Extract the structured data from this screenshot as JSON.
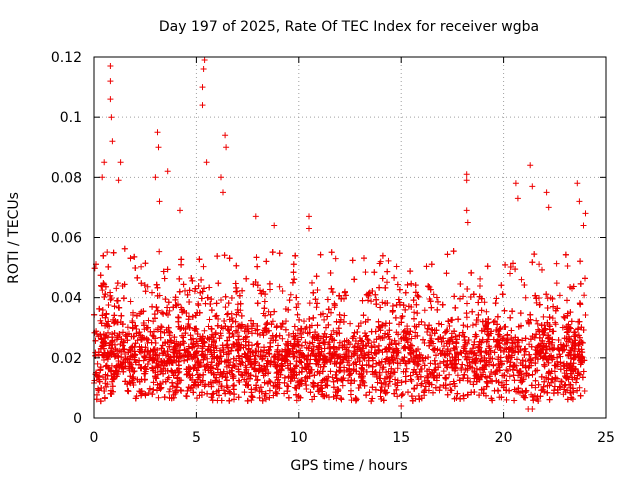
{
  "chart_data": {
    "type": "scatter",
    "title": "Day 197 of 2025, Rate Of TEC Index for receiver wgba",
    "xlabel": "GPS time / hours",
    "ylabel": "ROTI / TECUs",
    "xlim": [
      0,
      25
    ],
    "ylim": [
      0,
      0.12
    ],
    "xticks": [
      0,
      5,
      10,
      15,
      20,
      25
    ],
    "xtick_labels": [
      "0",
      "5",
      "10",
      "15",
      "20",
      "25"
    ],
    "yticks": [
      0,
      0.02,
      0.04,
      0.06,
      0.08,
      0.1,
      0.12
    ],
    "ytick_labels": [
      "0",
      "0.02",
      "0.04",
      "0.06",
      "0.08",
      "0.1",
      "0.12"
    ],
    "grid": true,
    "marker": "+",
    "color": "#ee0000",
    "x_range_hours": [
      0,
      24
    ],
    "dense_band": [
      0.008,
      0.03
    ],
    "typical_upper_envelope": 0.045,
    "notable_points": [
      {
        "x": 0.8,
        "y": 0.117
      },
      {
        "x": 0.8,
        "y": 0.112
      },
      {
        "x": 0.8,
        "y": 0.106
      },
      {
        "x": 0.85,
        "y": 0.1
      },
      {
        "x": 0.9,
        "y": 0.092
      },
      {
        "x": 0.5,
        "y": 0.085
      },
      {
        "x": 1.3,
        "y": 0.085
      },
      {
        "x": 1.2,
        "y": 0.079
      },
      {
        "x": 0.4,
        "y": 0.08
      },
      {
        "x": 3.1,
        "y": 0.095
      },
      {
        "x": 3.15,
        "y": 0.09
      },
      {
        "x": 3.6,
        "y": 0.082
      },
      {
        "x": 3.0,
        "y": 0.08
      },
      {
        "x": 4.2,
        "y": 0.069
      },
      {
        "x": 3.2,
        "y": 0.072
      },
      {
        "x": 5.4,
        "y": 0.119
      },
      {
        "x": 5.35,
        "y": 0.116
      },
      {
        "x": 5.3,
        "y": 0.11
      },
      {
        "x": 5.3,
        "y": 0.104
      },
      {
        "x": 6.4,
        "y": 0.094
      },
      {
        "x": 6.45,
        "y": 0.09
      },
      {
        "x": 5.5,
        "y": 0.085
      },
      {
        "x": 6.2,
        "y": 0.08
      },
      {
        "x": 6.3,
        "y": 0.075
      },
      {
        "x": 7.9,
        "y": 0.067
      },
      {
        "x": 8.8,
        "y": 0.064
      },
      {
        "x": 10.5,
        "y": 0.067
      },
      {
        "x": 10.5,
        "y": 0.063
      },
      {
        "x": 11.8,
        "y": 0.053
      },
      {
        "x": 14.0,
        "y": 0.052
      },
      {
        "x": 18.2,
        "y": 0.081
      },
      {
        "x": 18.2,
        "y": 0.079
      },
      {
        "x": 18.2,
        "y": 0.069
      },
      {
        "x": 18.25,
        "y": 0.065
      },
      {
        "x": 21.3,
        "y": 0.084
      },
      {
        "x": 20.6,
        "y": 0.078
      },
      {
        "x": 21.4,
        "y": 0.077
      },
      {
        "x": 20.7,
        "y": 0.073
      },
      {
        "x": 22.1,
        "y": 0.075
      },
      {
        "x": 23.6,
        "y": 0.078
      },
      {
        "x": 23.7,
        "y": 0.072
      },
      {
        "x": 22.2,
        "y": 0.07
      },
      {
        "x": 24.0,
        "y": 0.068
      },
      {
        "x": 23.9,
        "y": 0.064
      },
      {
        "x": 21.2,
        "y": 0.003
      },
      {
        "x": 21.4,
        "y": 0.003
      },
      {
        "x": 15.0,
        "y": 0.004
      }
    ]
  }
}
